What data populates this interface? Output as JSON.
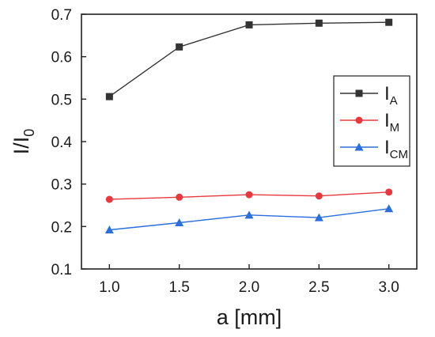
{
  "chart_data": {
    "type": "line",
    "x": [
      1.0,
      1.5,
      2.0,
      2.5,
      3.0
    ],
    "xlim": [
      0.8,
      3.2
    ],
    "ylim": [
      0.1,
      0.7
    ],
    "x_ticks": [
      "1.0",
      "1.5",
      "2.0",
      "2.5",
      "3.0"
    ],
    "y_ticks": [
      "0.1",
      "0.2",
      "0.3",
      "0.4",
      "0.5",
      "0.6",
      "0.7"
    ],
    "xlabel": "a [mm]",
    "ylabel": {
      "main": "I/I",
      "sub": "0"
    },
    "legend_position": "upper-right",
    "grid": false,
    "series": [
      {
        "name": "I",
        "name_sub": "A",
        "color": "#333333",
        "marker": "square",
        "values": [
          0.506,
          0.623,
          0.675,
          0.679,
          0.681
        ]
      },
      {
        "name": "I",
        "name_sub": "M",
        "color": "#e8383d",
        "marker": "circle",
        "values": [
          0.264,
          0.269,
          0.275,
          0.272,
          0.281
        ]
      },
      {
        "name": "I",
        "name_sub": "CM",
        "color": "#2a6fdb",
        "marker": "triangle",
        "values": [
          0.192,
          0.209,
          0.227,
          0.221,
          0.242
        ]
      }
    ]
  }
}
